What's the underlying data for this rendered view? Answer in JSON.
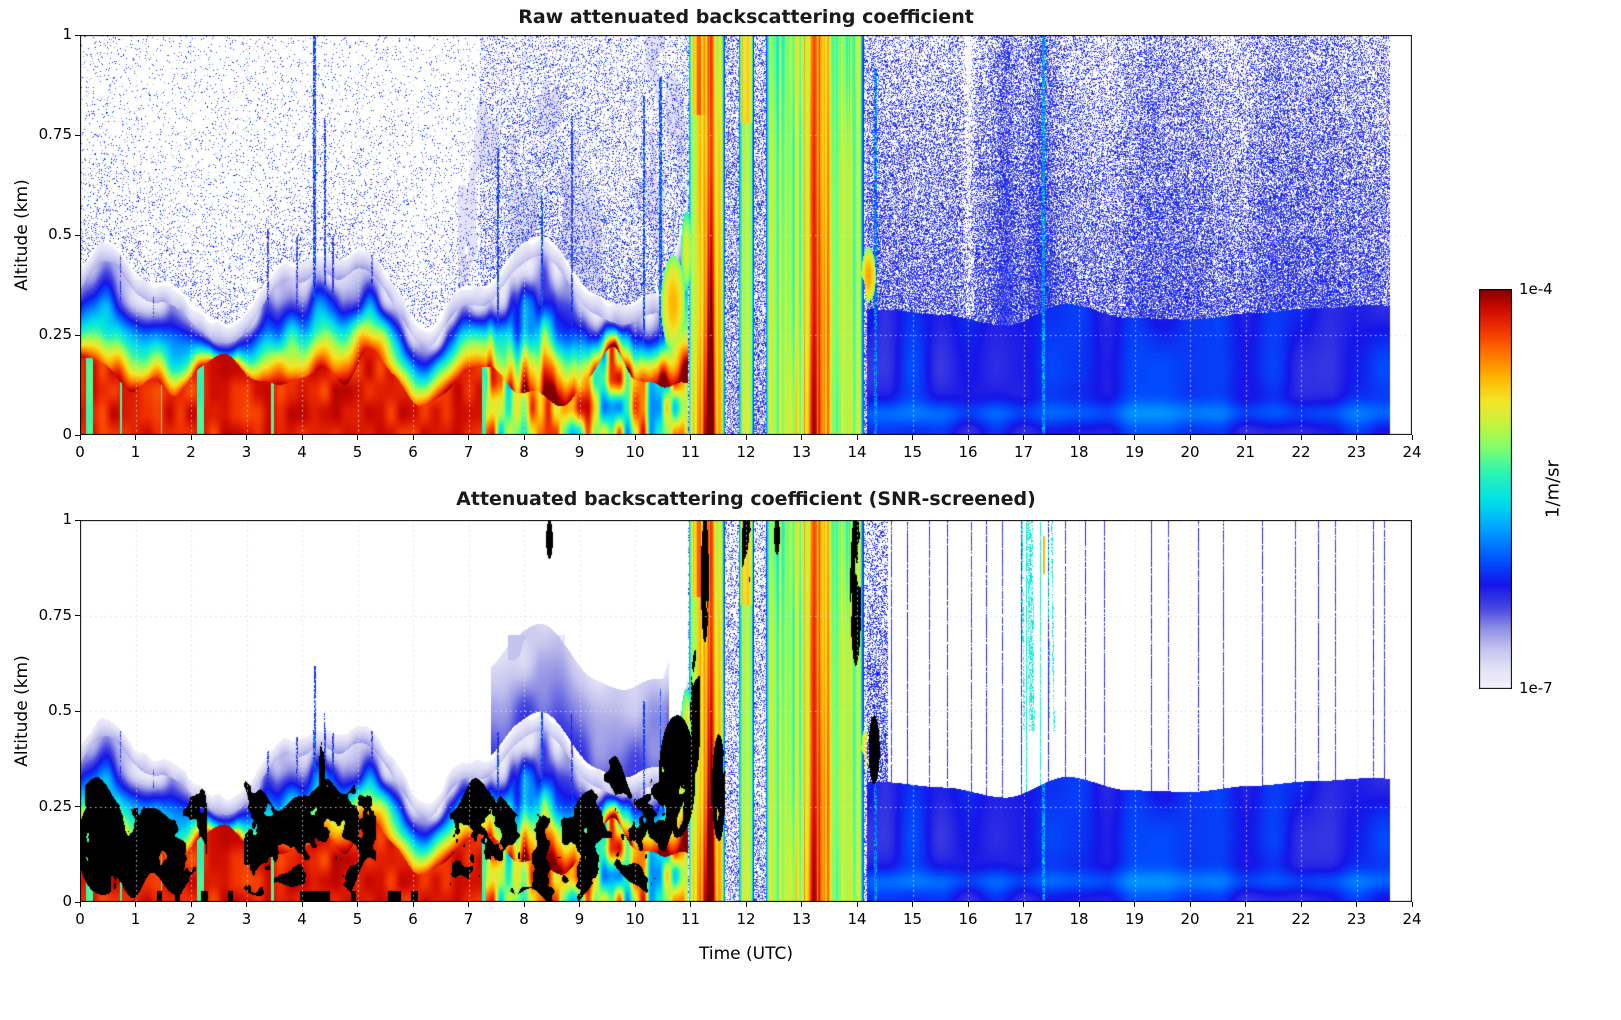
{
  "figure": {
    "background": "#ffffff",
    "frame_color": "#000000",
    "grid_color": "#dedede"
  },
  "panels": [
    {
      "title": "Raw attenuated backscattering coefficient",
      "y_label": "Altitude (km)"
    },
    {
      "title": "Attenuated backscattering coefficient (SNR-screened)",
      "y_label": "Altitude (km)"
    }
  ],
  "x_axis": {
    "label": "Time (UTC)",
    "ticks": [
      0,
      1,
      2,
      3,
      4,
      5,
      6,
      7,
      8,
      9,
      10,
      11,
      12,
      13,
      14,
      15,
      16,
      17,
      18,
      19,
      20,
      21,
      22,
      23,
      24
    ],
    "range": [
      0,
      24
    ]
  },
  "y_axis": {
    "ticks": [
      "0",
      "0.25",
      "0.5",
      "0.75",
      "1"
    ],
    "tick_values": [
      0,
      0.25,
      0.5,
      0.75,
      1
    ],
    "range": [
      0,
      1
    ]
  },
  "colorbar": {
    "top_label": "1e-4",
    "bottom_label": "1e-7",
    "unit_label": "1/m/sr",
    "stops": [
      [
        0.0,
        "#f4f3fb"
      ],
      [
        0.05,
        "#e2e1f6"
      ],
      [
        0.1,
        "#c3c2ee"
      ],
      [
        0.15,
        "#8f8fe4"
      ],
      [
        0.2,
        "#4848e0"
      ],
      [
        0.26,
        "#1515e8"
      ],
      [
        0.32,
        "#0050ff"
      ],
      [
        0.4,
        "#00a2ff"
      ],
      [
        0.47,
        "#00e0e8"
      ],
      [
        0.54,
        "#2cf4b2"
      ],
      [
        0.6,
        "#7dff6e"
      ],
      [
        0.66,
        "#c4f43c"
      ],
      [
        0.72,
        "#f4e428"
      ],
      [
        0.78,
        "#ffb300"
      ],
      [
        0.84,
        "#ff7100"
      ],
      [
        0.9,
        "#f03000"
      ],
      [
        0.95,
        "#cc0a00"
      ],
      [
        1.0,
        "#800000"
      ]
    ]
  },
  "chart_data": [
    {
      "type": "heatmap",
      "title": "Raw attenuated backscattering coefficient",
      "xlabel": "Time (UTC)",
      "ylabel": "Altitude (km)",
      "xlim": [
        0,
        24
      ],
      "ylim": [
        0,
        1
      ],
      "value_scale": "log",
      "value_range_1_per_m_sr": [
        1e-07,
        0.0001
      ],
      "data_end_utc": 23.6,
      "features": {
        "surface_aerosol_layer": "dark red (~1e-4) layer below ~0.15 km from 00-07 UTC with wavy red/yellow/cyan gradient up to the boundary-layer top",
        "echo_top_km_by_hour": [
          0.38,
          0.33,
          0.37,
          0.42,
          0.5,
          0.33,
          0.28,
          0.33,
          0.35,
          0.33,
          0.45,
          1.0,
          1.0,
          1.0,
          0.32,
          0.3,
          0.3,
          0.32,
          0.33,
          0.3,
          0.33,
          0.3,
          0.29,
          0.28
        ],
        "precipitation_bands_utc": [
          [
            10.95,
            11.62
          ],
          [
            11.86,
            12.14
          ],
          [
            12.32,
            14.15
          ]
        ],
        "heaviest_rain_cores_utc": [
          11.3,
          13.2
        ],
        "clear_air_noise": "speckled blue noise fills the free troposphere, sparse before 07 UTC, dense after 14 UTC",
        "shallow_layer_after_14_utc_km": 0.3
      }
    },
    {
      "type": "heatmap",
      "title": "Attenuated backscattering coefficient (SNR-screened)",
      "xlabel": "Time (UTC)",
      "ylabel": "Altitude (km)",
      "xlim": [
        0,
        24
      ],
      "ylim": [
        0,
        1
      ],
      "value_scale": "log",
      "value_range_1_per_m_sr": [
        1e-07,
        0.0001
      ],
      "data_end_utc": 23.6,
      "features": {
        "screening": "low-SNR regions removed (white); saturated/overloaded cloud pixels shown black",
        "black_cloud_regions_utc": "patches 0-7.5 UTC below 0.3 km, rising tongues 10.3-11.5 UTC up to 0.55 km, cloud tops 11.2-14.4 UTC near 0.8-1.0 km",
        "precipitation_bands_utc": [
          [
            10.95,
            11.62
          ],
          [
            11.86,
            12.14
          ],
          [
            12.32,
            14.15
          ]
        ],
        "residual_vertical_stripes": "isolated noisy profiles remain as thin full-depth lines after 14.5 UTC",
        "shallow_layer_after_14_utc_km": 0.3
      }
    }
  ],
  "render": {
    "data_end": 23.6,
    "spikes": [
      {
        "t": 0.72,
        "h": 0.45,
        "w": 0.015,
        "v": 0.22
      },
      {
        "t": 1.32,
        "h": 0.35,
        "w": 0.012,
        "v": 0.2
      },
      {
        "t": 3.38,
        "h": 0.52,
        "w": 0.02,
        "v": 0.22
      },
      {
        "t": 3.9,
        "h": 0.5,
        "w": 0.012,
        "v": 0.22
      },
      {
        "t": 4.22,
        "h": 1.0,
        "w": 0.022,
        "v": 0.3
      },
      {
        "t": 4.4,
        "h": 0.8,
        "w": 0.018,
        "v": 0.28
      },
      {
        "t": 4.55,
        "h": 0.5,
        "w": 0.015,
        "v": 0.25
      },
      {
        "t": 5.25,
        "h": 0.45,
        "w": 0.015,
        "v": 0.22
      },
      {
        "t": 7.52,
        "h": 0.72,
        "w": 0.02,
        "v": 0.28
      },
      {
        "t": 8.32,
        "h": 0.6,
        "w": 0.02,
        "v": 0.3
      },
      {
        "t": 8.85,
        "h": 0.8,
        "w": 0.018,
        "v": 0.26
      },
      {
        "t": 10.15,
        "h": 0.85,
        "w": 0.02,
        "v": 0.3
      },
      {
        "t": 10.45,
        "h": 0.9,
        "w": 0.02,
        "v": 0.32
      },
      {
        "t": 14.32,
        "h": 0.92,
        "w": 0.028,
        "v": 0.36
      },
      {
        "t": 17.35,
        "h": 1.0,
        "w": 0.02,
        "v": 0.4
      }
    ],
    "warm_blobs": [
      {
        "t": 10.68,
        "z": 0.33,
        "rt": 0.22,
        "rz": 0.12,
        "v": 0.78
      },
      {
        "t": 10.92,
        "z": 0.46,
        "rt": 0.1,
        "rz": 0.1,
        "v": 0.7
      },
      {
        "t": 14.2,
        "z": 0.4,
        "rt": 0.13,
        "rz": 0.07,
        "v": 0.8
      }
    ],
    "black_blobs": [
      {
        "t": 0.4,
        "z": 0.15,
        "rt": 0.45,
        "rz": 0.13
      },
      {
        "t": 4.35,
        "z": 0.3,
        "rt": 0.06,
        "rz": 0.12
      },
      {
        "t": 8.45,
        "z": 0.95,
        "rt": 0.06,
        "rz": 0.05
      },
      {
        "t": 10.75,
        "z": 0.33,
        "rt": 0.33,
        "rz": 0.16
      },
      {
        "t": 11.08,
        "z": 0.5,
        "rt": 0.09,
        "rz": 0.16
      },
      {
        "t": 11.25,
        "z": 0.85,
        "rt": 0.07,
        "rz": 0.17
      },
      {
        "t": 11.5,
        "z": 0.3,
        "rt": 0.12,
        "rz": 0.14
      },
      {
        "t": 12.0,
        "z": 0.92,
        "rt": 0.09,
        "rz": 0.1
      },
      {
        "t": 12.55,
        "z": 0.96,
        "rt": 0.05,
        "rz": 0.05
      },
      {
        "t": 13.97,
        "z": 0.82,
        "rt": 0.1,
        "rz": 0.2
      },
      {
        "t": 14.3,
        "z": 0.4,
        "rt": 0.1,
        "rz": 0.09
      }
    ],
    "stripe_lines": [
      {
        "t": 14.62,
        "v": 0.22
      },
      {
        "t": 14.9,
        "v": 0.24
      },
      {
        "t": 15.3,
        "v": 0.22
      },
      {
        "t": 15.62,
        "v": 0.23
      },
      {
        "t": 16.05,
        "v": 0.22
      },
      {
        "t": 16.32,
        "v": 0.24
      },
      {
        "t": 16.62,
        "v": 0.22
      },
      {
        "t": 16.95,
        "v": 0.3
      },
      {
        "t": 17.05,
        "v": 0.5
      },
      {
        "t": 17.3,
        "v": 0.52
      },
      {
        "t": 17.45,
        "v": 0.26
      },
      {
        "t": 17.75,
        "v": 0.22
      },
      {
        "t": 18.1,
        "v": 0.24
      },
      {
        "t": 18.45,
        "v": 0.22
      },
      {
        "t": 19.3,
        "v": 0.23
      },
      {
        "t": 19.6,
        "v": 0.22
      },
      {
        "t": 20.15,
        "v": 0.24
      },
      {
        "t": 20.6,
        "v": 0.22
      },
      {
        "t": 21.3,
        "v": 0.23
      },
      {
        "t": 21.9,
        "v": 0.22
      },
      {
        "t": 22.3,
        "v": 0.24
      },
      {
        "t": 22.62,
        "v": 0.22
      },
      {
        "t": 23.3,
        "v": 0.23
      },
      {
        "t": 23.5,
        "v": 0.22
      }
    ]
  }
}
